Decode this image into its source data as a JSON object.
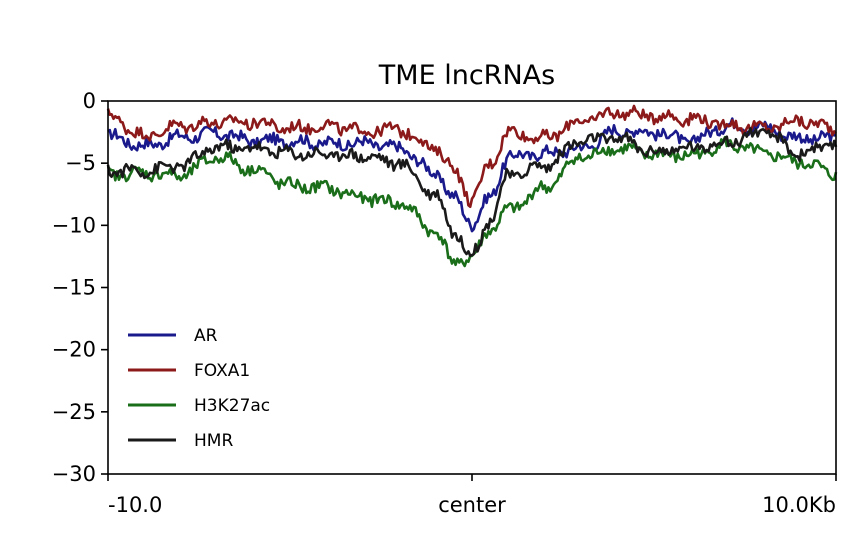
{
  "chart_data": {
    "type": "line",
    "title": "TME lncRNAs",
    "xlabel": "",
    "ylabel": "",
    "ylim": [
      -30,
      0
    ],
    "yticks": [
      0,
      -5,
      -10,
      -15,
      -20,
      -25,
      -30
    ],
    "ytick_labels": [
      "0",
      "−5",
      "−10",
      "−15",
      "−20",
      "−25",
      "−30"
    ],
    "xlim": [
      -10,
      10
    ],
    "xticks": [
      -10,
      0,
      10
    ],
    "xtick_labels": [
      "-10.0",
      "center",
      "10.0Kb"
    ],
    "x_unit": "kb",
    "grid": false,
    "legend_position": "lower-left",
    "x": [
      -10,
      -9,
      -8,
      -7,
      -6,
      -5,
      -4,
      -3,
      -2,
      -1,
      -0.5,
      0,
      0.5,
      1,
      2,
      3,
      4,
      5,
      6,
      7,
      8,
      9,
      10
    ],
    "series": [
      {
        "name": "AR",
        "color": "#1a1a8c",
        "values": [
          -2.8,
          -3.6,
          -2.9,
          -2.6,
          -3.2,
          -3.2,
          -3.4,
          -3.4,
          -3.8,
          -5.8,
          -7.8,
          -9.8,
          -7.8,
          -4.5,
          -4.2,
          -3.8,
          -2.4,
          -2.5,
          -3.2,
          -2.0,
          -2.1,
          -3.0,
          -3.0
        ]
      },
      {
        "name": "FOXA1",
        "color": "#8c1a1a",
        "values": [
          -1.2,
          -2.8,
          -2.0,
          -1.7,
          -1.7,
          -2.2,
          -2.0,
          -2.4,
          -2.3,
          -3.8,
          -5.5,
          -8.0,
          -5.0,
          -2.5,
          -3.0,
          -1.6,
          -0.9,
          -1.2,
          -1.4,
          -1.9,
          -2.2,
          -1.6,
          -2.2
        ]
      },
      {
        "name": "H3K27ac",
        "color": "#1a6e1a",
        "values": [
          -5.9,
          -5.8,
          -6.0,
          -4.5,
          -5.5,
          -6.8,
          -7.0,
          -7.8,
          -8.2,
          -10.5,
          -13.0,
          -12.6,
          -10.3,
          -8.8,
          -7.0,
          -4.5,
          -3.8,
          -4.3,
          -4.4,
          -3.5,
          -4.2,
          -4.9,
          -5.8
        ]
      },
      {
        "name": "HMR",
        "color": "#1a1a1a",
        "values": [
          -5.6,
          -5.6,
          -5.2,
          -3.7,
          -3.8,
          -4.2,
          -4.3,
          -4.4,
          -5.0,
          -7.5,
          -10.5,
          -12.4,
          -9.5,
          -6.0,
          -5.2,
          -3.2,
          -3.0,
          -4.1,
          -3.8,
          -3.3,
          -2.5,
          -4.2,
          -3.5
        ]
      }
    ]
  }
}
